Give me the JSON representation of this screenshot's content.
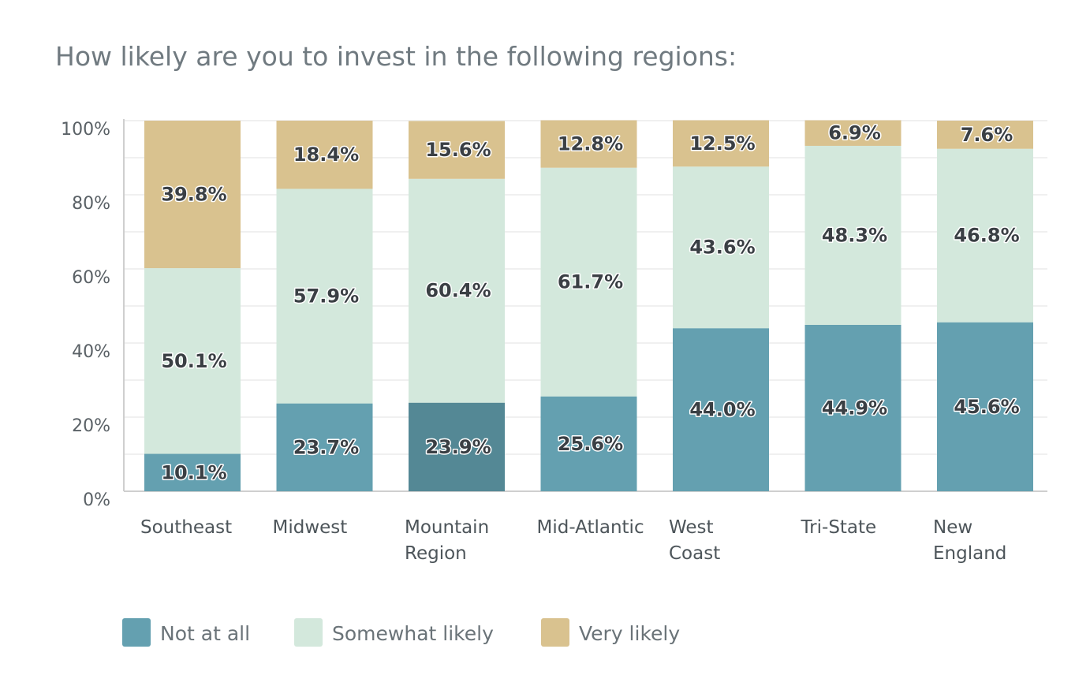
{
  "chart_data": {
    "type": "bar",
    "stacked": true,
    "title": "How likely are you to invest in the following regions:",
    "categories": [
      [
        "Southeast"
      ],
      [
        "Midwest"
      ],
      [
        "Mountain",
        "Region"
      ],
      [
        "Mid-Atlantic"
      ],
      [
        "West",
        "Coast"
      ],
      [
        "Tri-State"
      ],
      [
        "New",
        "England"
      ]
    ],
    "series": [
      {
        "name": "Not at all",
        "color": "#64a0b0",
        "values": [
          10.1,
          23.7,
          23.9,
          25.6,
          44.0,
          44.9,
          45.6
        ],
        "labels": [
          "10.1%",
          "23.7%",
          "23.9%",
          "25.6%",
          "44.0%",
          "44.9%",
          "45.6%"
        ]
      },
      {
        "name": "Somewhat likely",
        "color": "#d3e8dc",
        "values": [
          50.1,
          57.9,
          60.4,
          61.7,
          43.6,
          48.3,
          46.8
        ],
        "labels": [
          "50.1%",
          "57.9%",
          "60.4%",
          "61.7%",
          "43.6%",
          "48.3%",
          "46.8%"
        ]
      },
      {
        "name": "Very likely",
        "color": "#d9c28f",
        "values": [
          39.8,
          18.4,
          15.6,
          12.8,
          12.5,
          6.9,
          7.6
        ],
        "labels": [
          "39.8%",
          "18.4%",
          "15.6%",
          "12.8%",
          "12.5%",
          "6.9%",
          "7.6%"
        ]
      }
    ],
    "highlight": {
      "series": 0,
      "category": 2,
      "color": "#548895"
    },
    "ylim": [
      0,
      100
    ],
    "yticks": [
      "0%",
      "20%",
      "40%",
      "60%",
      "80%",
      "100%"
    ],
    "grid": true,
    "legend": "bottom-left"
  }
}
